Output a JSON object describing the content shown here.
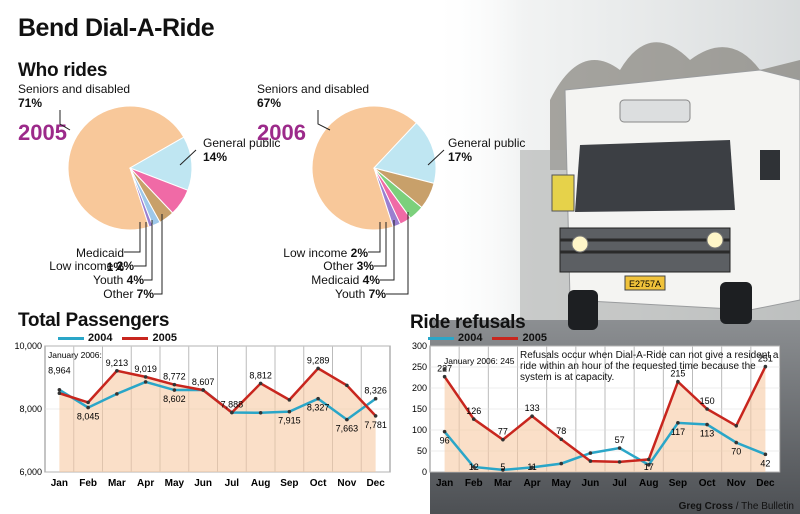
{
  "title": "Bend Dial-A-Ride",
  "who_rides": {
    "heading": "Who rides",
    "pies": [
      {
        "year": "2005",
        "slices": [
          {
            "label": "Seniors and disabled",
            "pct_text": "71%",
            "value": 71,
            "color": "#f8c89a"
          },
          {
            "label": "General public",
            "pct_text": "14%",
            "value": 14,
            "color": "#bfe6f2"
          },
          {
            "label": "Other",
            "pct_text": "7%",
            "value": 7,
            "color": "#f06aa6"
          },
          {
            "label": "Youth",
            "pct_text": "4%",
            "value": 4,
            "color": "#c8a06a"
          },
          {
            "label": "Low income",
            "pct_text": "2%",
            "value": 2,
            "color": "#9ec8ea"
          },
          {
            "label": "Medicaid",
            "pct_text": "1%",
            "value": 1,
            "color": "#9a7fd0"
          }
        ]
      },
      {
        "year": "2006",
        "slices": [
          {
            "label": "Seniors and disabled",
            "pct_text": "67%",
            "value": 67,
            "color": "#f8c89a"
          },
          {
            "label": "General public",
            "pct_text": "17%",
            "value": 17,
            "color": "#bfe6f2"
          },
          {
            "label": "Youth",
            "pct_text": "7%",
            "value": 7,
            "color": "#c8a06a"
          },
          {
            "label": "Medicaid",
            "pct_text": "4%",
            "value": 4,
            "color": "#7cd07c"
          },
          {
            "label": "Other",
            "pct_text": "3%",
            "value": 3,
            "color": "#f06aa6"
          },
          {
            "label": "Low income",
            "pct_text": "2%",
            "value": 2,
            "color": "#9a7fd0"
          }
        ]
      }
    ]
  },
  "chart_data": [
    {
      "type": "line",
      "title": "Total Passengers",
      "categories": [
        "Jan",
        "Feb",
        "Mar",
        "Apr",
        "May",
        "Jun",
        "Jul",
        "Aug",
        "Sep",
        "Oct",
        "Nov",
        "Dec"
      ],
      "ylim": [
        6000,
        10000
      ],
      "y_ticks": [
        "10,000",
        "8,000",
        "6,000"
      ],
      "annotation": "January 2006:",
      "annotation_value": "8,964",
      "series": [
        {
          "name": "2004",
          "color": "#2aa6c8",
          "values": [
            8610,
            8045,
            8480,
            8860,
            8602,
            8607,
            7888,
            7880,
            7915,
            8327,
            7663,
            8326
          ]
        },
        {
          "name": "2005",
          "color": "#c8261e",
          "values": [
            8500,
            8210,
            9213,
            9019,
            8772,
            8600,
            7888,
            8812,
            8290,
            9289,
            8750,
            7781
          ]
        }
      ],
      "labels": [
        {
          "text": "8,964",
          "i": 0,
          "v": 8964
        },
        {
          "text": "8,045",
          "i": 1,
          "v": 8045
        },
        {
          "text": "9,213",
          "i": 2,
          "v": 9213
        },
        {
          "text": "9,019",
          "i": 3,
          "v": 9019
        },
        {
          "text": "8,602",
          "i": 4,
          "v": 8602
        },
        {
          "text": "8,772",
          "i": 4,
          "v": 8772
        },
        {
          "text": "8,607",
          "i": 5,
          "v": 8607
        },
        {
          "text": "7,888",
          "i": 6,
          "v": 7888
        },
        {
          "text": "8,812",
          "i": 7,
          "v": 8812
        },
        {
          "text": "7,915",
          "i": 8,
          "v": 7915
        },
        {
          "text": "9,289",
          "i": 9,
          "v": 9289
        },
        {
          "text": "8,327",
          "i": 9,
          "v": 8327
        },
        {
          "text": "7,663",
          "i": 10,
          "v": 7663
        },
        {
          "text": "8,326",
          "i": 11,
          "v": 8326
        },
        {
          "text": "7,781",
          "i": 11,
          "v": 7781
        }
      ]
    },
    {
      "type": "line",
      "title": "Ride refusals",
      "categories": [
        "Jan",
        "Feb",
        "Mar",
        "Apr",
        "May",
        "Jun",
        "Jul",
        "Aug",
        "Sep",
        "Oct",
        "Nov",
        "Dec"
      ],
      "ylim": [
        0,
        300
      ],
      "y_ticks": [
        "300",
        "250",
        "200",
        "150",
        "100",
        "50",
        "0"
      ],
      "annotation": "January 2006: 245",
      "annotation_value": 245,
      "note": "Refusals occur when Dial-A-Ride can not give a resident a ride within an hour of the requested time because the system is at capacity.",
      "series": [
        {
          "name": "2004",
          "color": "#2aa6c8",
          "values": [
            96,
            12,
            5,
            11,
            20,
            45,
            57,
            17,
            117,
            113,
            70,
            42
          ]
        },
        {
          "name": "2005",
          "color": "#c8261e",
          "values": [
            227,
            126,
            77,
            133,
            78,
            26,
            24,
            30,
            215,
            150,
            110,
            251
          ]
        }
      ],
      "labels": [
        {
          "text": "227",
          "i": 0,
          "v": 227
        },
        {
          "text": "96",
          "i": 0,
          "v": 96
        },
        {
          "text": "12",
          "i": 1,
          "v": 12
        },
        {
          "text": "126",
          "i": 1,
          "v": 126
        },
        {
          "text": "77",
          "i": 2,
          "v": 77
        },
        {
          "text": "5",
          "i": 2,
          "v": 5
        },
        {
          "text": "133",
          "i": 3,
          "v": 133
        },
        {
          "text": "11",
          "i": 3,
          "v": 11
        },
        {
          "text": "78",
          "i": 4,
          "v": 78
        },
        {
          "text": "57",
          "i": 6,
          "v": 57
        },
        {
          "text": "17",
          "i": 7,
          "v": 17
        },
        {
          "text": "215",
          "i": 8,
          "v": 215
        },
        {
          "text": "117",
          "i": 8,
          "v": 117
        },
        {
          "text": "113",
          "i": 9,
          "v": 113
        },
        {
          "text": "150",
          "i": 9,
          "v": 150
        },
        {
          "text": "70",
          "i": 10,
          "v": 70
        },
        {
          "text": "251",
          "i": 11,
          "v": 251
        },
        {
          "text": "42",
          "i": 11,
          "v": 42
        }
      ]
    }
  ],
  "credit": "Greg Cross",
  "credit_source": " / The Bulletin",
  "photo": {
    "plate_text": "E2757A"
  }
}
